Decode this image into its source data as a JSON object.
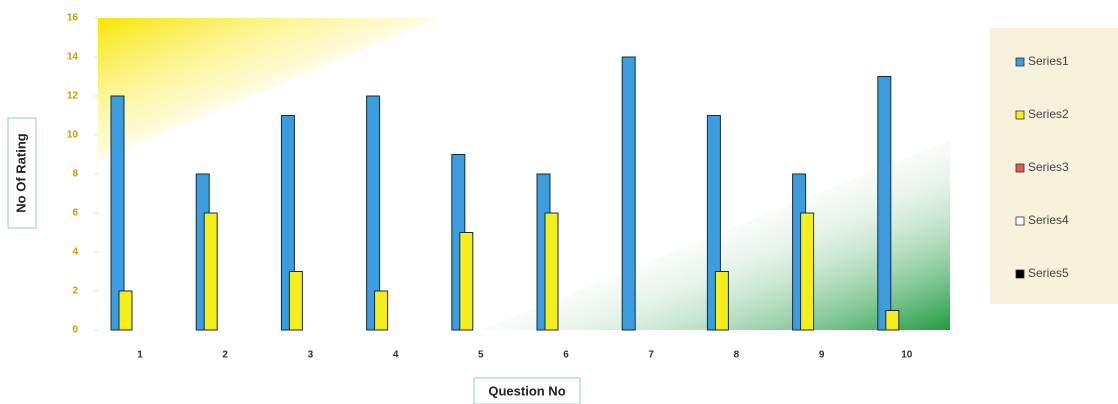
{
  "chart_data": {
    "type": "bar",
    "ylabel": "No Of Rating",
    "xlabel": "Question No",
    "categories": [
      "1",
      "2",
      "3",
      "4",
      "5",
      "6",
      "7",
      "8",
      "9",
      "10"
    ],
    "series": [
      {
        "name": "Series1",
        "color": "#3b9de0",
        "values": [
          12,
          8,
          11,
          12,
          9,
          8,
          14,
          11,
          8,
          13
        ]
      },
      {
        "name": "Series2",
        "color": "#f4ee1c",
        "values": [
          2,
          6,
          3,
          2,
          5,
          6,
          0,
          3,
          6,
          1
        ]
      },
      {
        "name": "Series3",
        "color": "#e05a5a",
        "values": [
          0,
          0,
          0,
          0,
          0,
          0,
          0,
          0,
          0,
          0
        ]
      },
      {
        "name": "Series4",
        "color": "#ffffff",
        "values": [
          0,
          0,
          0,
          0,
          0,
          0,
          0,
          0,
          0,
          0
        ]
      },
      {
        "name": "Series5",
        "color": "#000000",
        "values": [
          0,
          0,
          0,
          0,
          0,
          0,
          0,
          0,
          0,
          0
        ]
      }
    ],
    "ylim": [
      0,
      16
    ],
    "yticks": [
      0,
      2,
      4,
      6,
      8,
      10,
      12,
      14,
      16
    ],
    "legend": "right"
  }
}
